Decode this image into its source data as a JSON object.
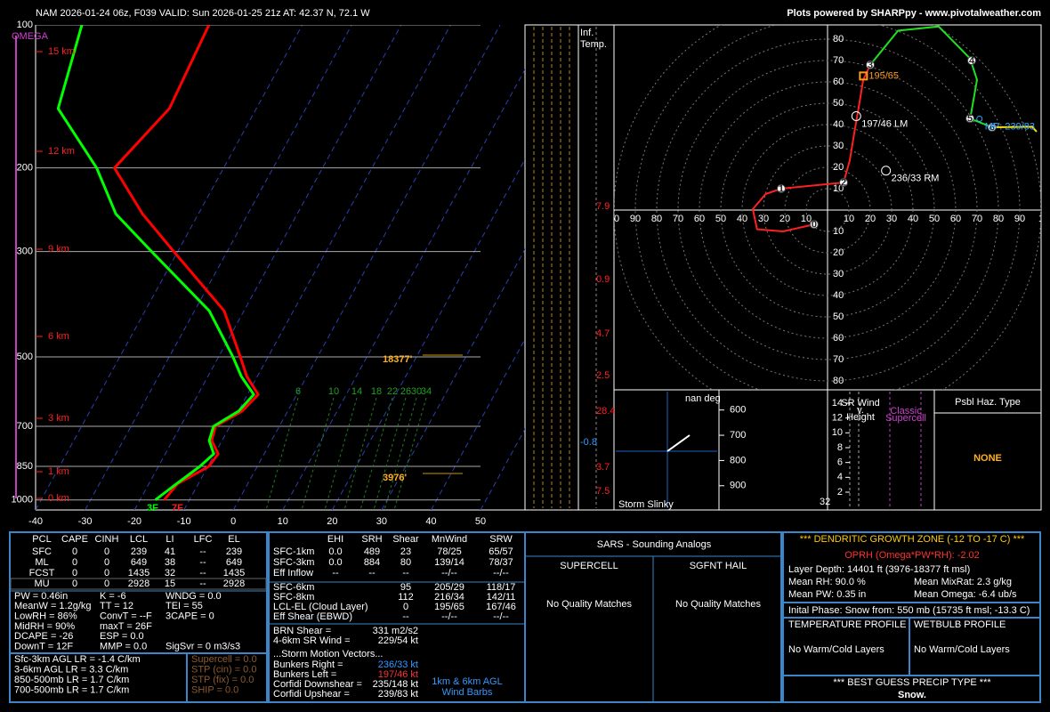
{
  "header": {
    "title": "NAM 2026-01-24 06z, F039  VALID: Sun 2026-01-25 21z  AT: 42.37 N, 72.1 W",
    "credit": "Plots powered by SHARPpy - www.pivotalweather.com"
  },
  "chart_data": [
    {
      "type": "skewt",
      "log_scale": true,
      "grid": true,
      "pressure": [
        1000,
        925,
        850,
        800,
        750,
        700,
        650,
        600,
        550,
        500,
        400,
        300,
        250,
        200,
        150,
        100
      ],
      "series": [
        {
          "color": "#ff0000",
          "values": [
            -15.1,
            -14.2,
            -9.8,
            -9.3,
            -12.1,
            -12.9,
            -9.2,
            -7.8,
            -12.1,
            -15.6,
            -24,
            -40.8,
            -51.3,
            -62.1,
            -57.6,
            -58.9
          ]
        },
        {
          "color": "#00ff00",
          "values": [
            -16.9,
            -14.4,
            -11.6,
            -10.2,
            -12.6,
            -13.3,
            -9.9,
            -8.7,
            -13.2,
            -17.1,
            -27,
            -45.3,
            -56.7,
            -65.7,
            -80.1,
            -84.6
          ]
        }
      ],
      "xlim": [
        -40,
        50
      ],
      "xticks": [
        -40,
        -30,
        -20,
        -10,
        0,
        10,
        20,
        30,
        40,
        50
      ],
      "ylim": [
        100,
        1050
      ],
      "yticks": [
        100,
        200,
        300,
        500,
        700,
        850,
        1000
      ],
      "y_axis_label": "OMEGA",
      "height_labels": [
        "15 km",
        "12 km",
        "9 km",
        "6 km",
        "3 km",
        "1 km",
        "0 km"
      ],
      "surface_labels": [
        "3F",
        "7F"
      ],
      "annotations": [
        "18377'",
        "3976'"
      ],
      "mixing_ratio_labels": [
        6,
        10,
        14,
        18,
        22,
        26,
        30,
        34
      ]
    },
    {
      "type": "hodograph",
      "grid": true,
      "xlim": [
        -100,
        100
      ],
      "xticks": [
        {
          "value": -100,
          "label": "00"
        },
        {
          "value": -90,
          "label": "90"
        },
        {
          "value": -80,
          "label": "80"
        },
        {
          "value": -70,
          "label": "70"
        },
        {
          "value": -60,
          "label": "60"
        },
        {
          "value": -50,
          "label": "50"
        },
        {
          "value": -40,
          "label": "40"
        },
        {
          "value": -30,
          "label": "30"
        },
        {
          "value": -20,
          "label": "20"
        },
        {
          "value": -10,
          "label": "10"
        },
        10,
        20,
        30,
        40,
        50,
        60,
        70,
        80,
        90,
        {
          "value": 100,
          "label": "1"
        }
      ],
      "ylim": [
        -84.2,
        86.7
      ],
      "yticks": [
        80,
        70,
        60,
        50,
        40,
        30,
        20,
        10,
        {
          "value": -10,
          "label": "10"
        },
        {
          "value": -20,
          "label": "20"
        },
        {
          "value": -30,
          "label": "30"
        },
        {
          "value": -40,
          "label": "40"
        },
        {
          "value": -50,
          "label": "50"
        },
        {
          "value": -60,
          "label": "60"
        },
        {
          "value": -70,
          "label": "70"
        },
        {
          "value": -80,
          "label": "80"
        }
      ],
      "series": [
        {
          "color": "#ff2020",
          "u": [
            -6.3,
            -20.8,
            -33,
            -35,
            -29,
            -21.7,
            7.5,
            10.4,
            12.5,
            14.6,
            16.7,
            20
          ],
          "v": [
            -6.7,
            -10,
            -9,
            0.4,
            7.5,
            10,
            12.9,
            23.3,
            36,
            48,
            61,
            68
          ]
        },
        {
          "color": "#20e020",
          "u": [
            20,
            33,
            52,
            66.7,
            70,
            67,
            66.7,
            77
          ],
          "v": [
            68,
            84,
            86,
            71,
            61,
            44,
            42.9,
            38.75
          ]
        },
        {
          "color": "#ffe000",
          "u": [
            77,
            95.8,
            97.9
          ],
          "v": [
            38.75,
            39,
            36.7
          ]
        }
      ],
      "km_markers": {
        "labels": [
          0,
          1,
          2,
          3,
          4,
          5,
          6
        ],
        "u": [
          -6.3,
          -21.7,
          7.5,
          20,
          67.5,
          66.7,
          77
        ],
        "v": [
          -6.7,
          10,
          12.9,
          68,
          70,
          42.9,
          38.75
        ]
      },
      "storm_motions": [
        {
          "label": "195/65",
          "u": 16.82,
          "v": 62.79,
          "color": "#ff9a1a"
        },
        {
          "label": "197/46 LM",
          "u": 13.45,
          "v": 43.99,
          "color": "#ffffff"
        },
        {
          "label": "236/33 RM",
          "u": 27.36,
          "v": 18.45,
          "color": "#ffffff"
        },
        {
          "label": "MP: 239/83",
          "u": 71.14,
          "v": 42.75,
          "color": "#33aaff"
        }
      ]
    }
  ],
  "inferred_temp": {
    "title": [
      "Inf.",
      "Temp."
    ],
    "values": [
      7.9,
      0.9,
      4.7,
      2.5,
      28.4,
      -0.8,
      3.7,
      7.5
    ]
  },
  "storm_slinky": {
    "title": "Storm Slinky",
    "direction": "nan deg"
  },
  "theta_panel": {
    "ylim": [
      520,
      996
    ],
    "yticks": [
      600,
      700,
      800,
      900
    ],
    "label": 32
  },
  "sr_wind": {
    "title": [
      "SR Wind",
      "v.",
      "Height"
    ],
    "ylim": [
      -0.4,
      15.8
    ],
    "yticks": [
      2,
      4,
      6,
      8,
      10,
      12,
      14
    ],
    "label": [
      "Classic",
      "Supercell"
    ]
  },
  "hazard": {
    "title": "Psbl Haz. Type",
    "value": "NONE"
  },
  "thermo_table": {
    "header": [
      "PCL",
      "CAPE",
      "CINH",
      "LCL",
      "LI",
      "LFC",
      "EL"
    ],
    "rows": [
      [
        "SFC",
        "0",
        "0",
        "239",
        "41",
        "--",
        "239"
      ],
      [
        "ML",
        "0",
        "0",
        "649",
        "38",
        "--",
        "649"
      ],
      [
        "FCST",
        "0",
        "0",
        "1435",
        "32",
        "--",
        "1435"
      ],
      [
        "MU",
        "0",
        "0",
        "2928",
        "15",
        "--",
        "2928"
      ]
    ]
  },
  "indices": [
    [
      "PW = 0.46in",
      "K = -6",
      "WNDG = 0.0"
    ],
    [
      "MeanW = 1.2g/kg",
      "TT = 12",
      "TEI = 55"
    ],
    [
      "LowRH = 86%",
      "ConvT = --F",
      "3CAPE = 0"
    ],
    [
      "MidRH = 90%",
      "maxT = 26F"
    ],
    [
      "DCAPE = -26",
      "ESP = 0.0"
    ],
    [
      "DownT = 12F",
      "MMP = 0.0",
      "SigSvr = 0 m3/s3"
    ]
  ],
  "lapse_rates": [
    "Sfc-3km AGL LR = -1.4 C/km",
    "3-6km AGL LR = 3.3 C/km",
    "850-500mb LR = 1.7 C/km",
    "700-500mb LR = 1.7 C/km"
  ],
  "composite": [
    "Supercell = 0.0",
    "STP (cin) = 0.0",
    "STP (fix) = 0.0",
    "SHIP = 0.0"
  ],
  "kinematics": {
    "header": {
      "ehi": "EHI",
      "srh": "SRH",
      "shear": "Shear",
      "mnwind": "MnWind",
      "srw": "SRW"
    },
    "rows": [
      {
        "label": "SFC-1km",
        "ehi": "0.0",
        "srh": "489",
        "shear": "23",
        "mnwind": "78/25",
        "srw": "65/57"
      },
      {
        "label": "SFC-3km",
        "ehi": "0.0",
        "srh": "884",
        "shear": "80",
        "mnwind": "139/14",
        "srw": "78/37"
      },
      {
        "label": "Eff Inflow",
        "ehi": "--",
        "srh": "--",
        "shear": "--",
        "mnwind": "--/--",
        "srw": "--/--"
      },
      {
        "label": "SFC-6km",
        "shear": "95",
        "mnwind": "205/29",
        "srw": "118/17"
      },
      {
        "label": "SFC-8km",
        "shear": "112",
        "mnwind": "216/34",
        "srw": "142/11"
      },
      {
        "label": "LCL-EL (Cloud Layer)",
        "shear": "0",
        "mnwind": "195/65",
        "srw": "167/46"
      },
      {
        "label": "Eff Shear (EBWD)",
        "shear": "--",
        "mnwind": "--/--",
        "srw": "--/--"
      }
    ],
    "params": [
      [
        "BRN Shear =",
        "331 m2/s2"
      ],
      [
        "4-6km SR Wind =",
        "229/54 kt"
      ]
    ],
    "storm_motion_title": "...Storm Motion Vectors...",
    "storm_motions": [
      [
        "Bunkers Right =",
        "236/33 kt"
      ],
      [
        "Bunkers Left =",
        "197/46 kt"
      ],
      [
        "Corfidi Downshear =",
        "235/148 kt"
      ],
      [
        "Corfidi Upshear =",
        "239/83 kt"
      ]
    ],
    "barb_legend": [
      "1km & 6km AGL",
      "Wind Barbs"
    ]
  },
  "sars": {
    "title": "SARS - Sounding Analogs",
    "columns": [
      {
        "title": "SUPERCELL",
        "text": "No Quality Matches"
      },
      {
        "title": "SGFNT HAIL",
        "text": "No Quality Matches"
      }
    ]
  },
  "dgz": {
    "title": "*** DENDRITIC GROWTH ZONE (-12 TO -17 C) ***",
    "oprh": "OPRH (Omega*PW*RH): -2.02",
    "layer_depth": "Layer Depth: 14401 ft (3976-18377 ft msl)",
    "stats": [
      [
        "Mean RH: 90.0 %",
        "Mean MixRat: 2.3 g/kg"
      ],
      [
        "Mean PW: 0.35 in",
        "Mean Omega: -6.4 ub/s"
      ]
    ],
    "initial_phase": "Inital Phase: Snow from: 550 mb (15735 ft msl; -13.3 C)",
    "profiles": [
      {
        "title": "TEMPERATURE PROFILE",
        "text": "No Warm/Cold Layers"
      },
      {
        "title": "WETBULB PROFILE",
        "text": "No Warm/Cold Layers"
      }
    ],
    "precip_title": "*** BEST GUESS PRECIP TYPE ***",
    "precip": "Snow."
  }
}
